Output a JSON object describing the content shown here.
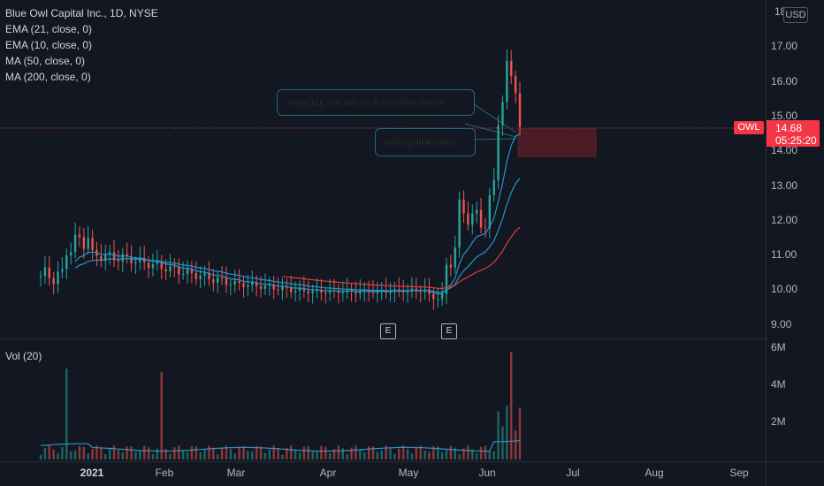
{
  "legend": {
    "title": "Blue Owl Capital Inc., 1D, NYSE",
    "indicators": [
      "EMA (21, close, 0)",
      "EMA (10, close, 0)",
      "MA (50, close, 0)",
      "MA (200, close, 0)"
    ]
  },
  "volume_legend": "Vol (20)",
  "currency_button": "USD",
  "price_axis": {
    "ticks": [
      "18",
      "17.00",
      "16.00",
      "15.00",
      "14.00",
      "13.00",
      "12.00",
      "11.00",
      "10.00",
      "9.00"
    ]
  },
  "volume_axis": {
    "ticks": [
      "6M",
      "4M",
      "2M"
    ]
  },
  "time_axis": {
    "ticks": [
      "2021",
      "Feb",
      "Mar",
      "Apr",
      "May",
      "Jun",
      "Jul",
      "Aug",
      "Sep"
    ]
  },
  "last_price": {
    "symbol": "OWL",
    "price": "14.68",
    "countdown": "05:25:20"
  },
  "annotations": {
    "callout_1": "stopping volume on 5 min time frame",
    "callout_2": "selling absorbed"
  },
  "earnings_badges": [
    "E",
    "E"
  ],
  "colors": {
    "background": "#131722",
    "up": "#26a69a",
    "down": "#ef5350",
    "ema": "#2196c8",
    "ma50": "#e03b3b",
    "last_price": "#f23645"
  }
}
